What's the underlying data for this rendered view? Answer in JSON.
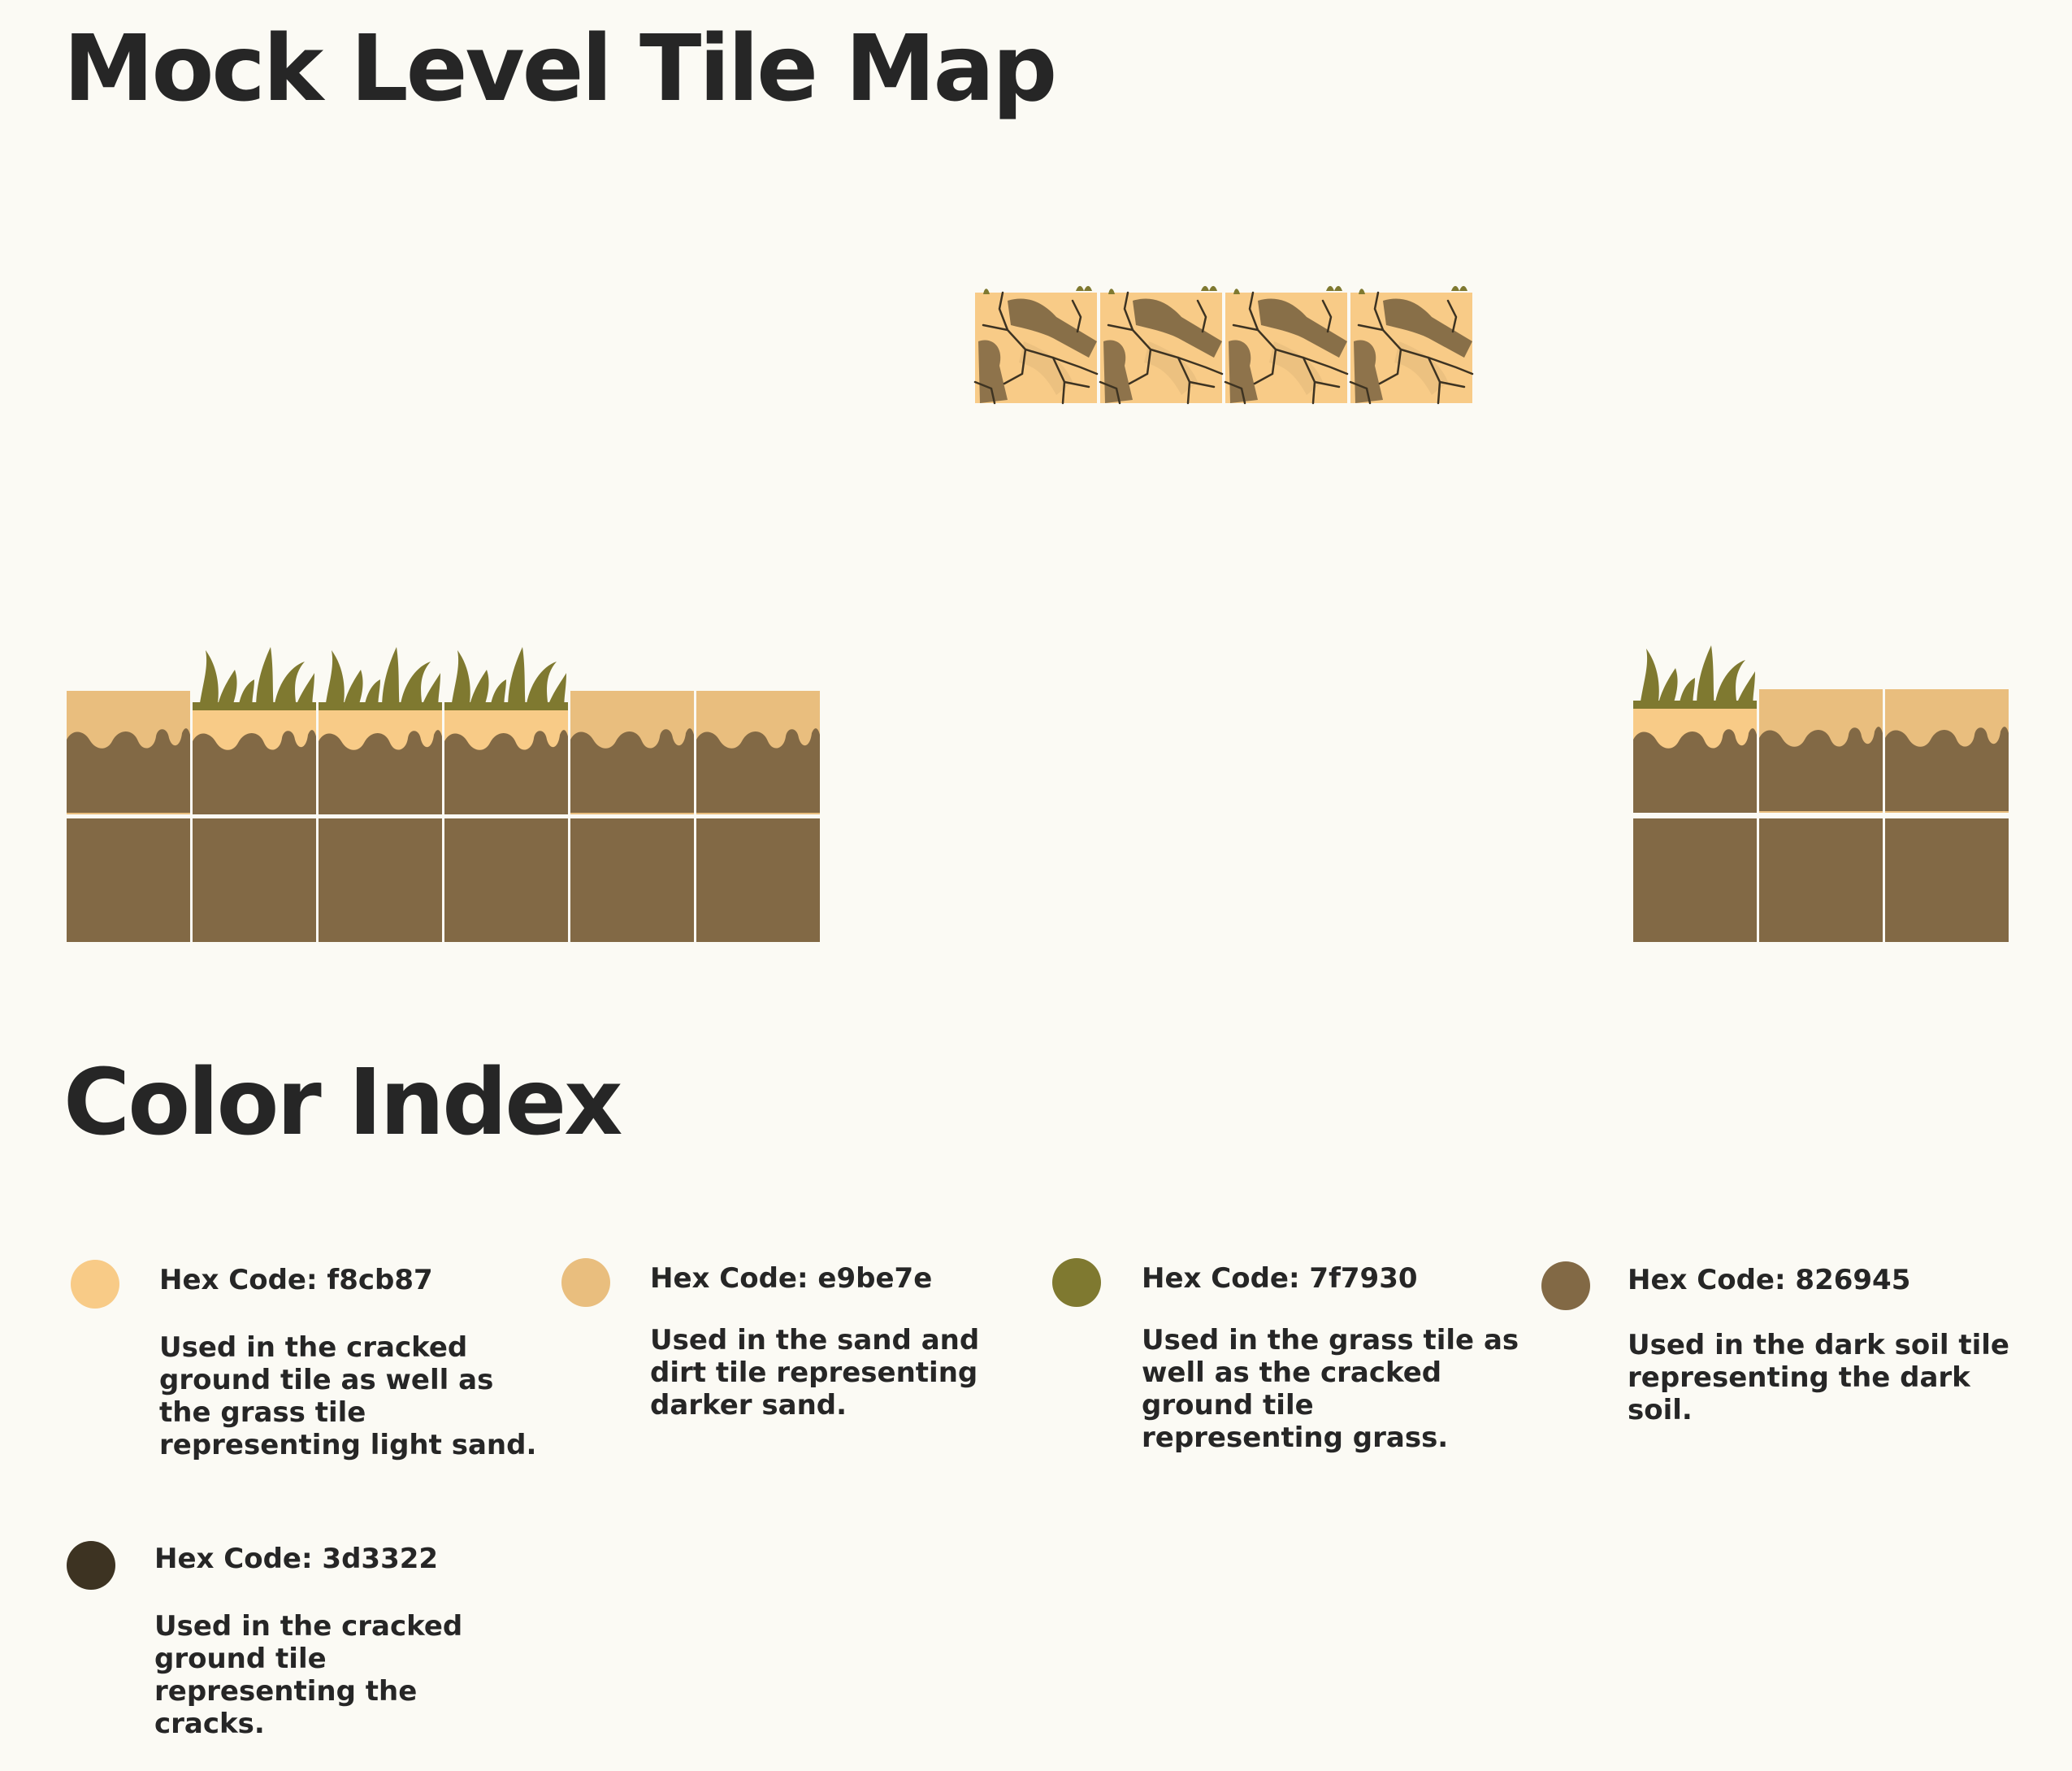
{
  "headings": {
    "tile_map": "Mock Level Tile Map",
    "color_index": "Color Index"
  },
  "palette": {
    "light_sand": "#f8cb87",
    "dark_sand": "#e9be7e",
    "grass": "#7f7930",
    "dark_soil": "#826945",
    "cracks": "#3d3322",
    "background": "#fbfaf4",
    "tile_gap": "#ffffff"
  },
  "color_index": [
    {
      "hex": "Hex Code: f8cb87",
      "color": "#f8cb87",
      "description": "Used in the cracked ground tile as well as the grass tile representing light sand."
    },
    {
      "hex": "Hex Code: e9be7e",
      "color": "#e9be7e",
      "description": "Used in the sand and dirt tile representing darker sand."
    },
    {
      "hex": "Hex Code: 7f7930",
      "color": "#7f7930",
      "description": "Used in the grass tile as well as the cracked ground tile representing grass."
    },
    {
      "hex": "Hex Code: 826945",
      "color": "#826945",
      "description": "Used in the dark soil tile representing the dark soil."
    },
    {
      "hex": "Hex Code: 3d3322",
      "color": "#3d3322",
      "description": "Used in the cracked ground tile representing the cracks."
    }
  ],
  "tile_map": {
    "floating_platform": [
      "cracked-ground",
      "cracked-ground",
      "cracked-ground",
      "cracked-ground"
    ],
    "left_ground": {
      "top_row": [
        "sand-dirt",
        "grass",
        "grass",
        "grass",
        "sand-dirt",
        "sand-dirt"
      ],
      "bottom_row": [
        "dark-soil",
        "dark-soil",
        "dark-soil",
        "dark-soil",
        "dark-soil",
        "dark-soil"
      ]
    },
    "right_ground": {
      "top_row": [
        "grass",
        "sand-dirt",
        "sand-dirt"
      ],
      "bottom_row": [
        "dark-soil",
        "dark-soil",
        "dark-soil"
      ]
    }
  }
}
